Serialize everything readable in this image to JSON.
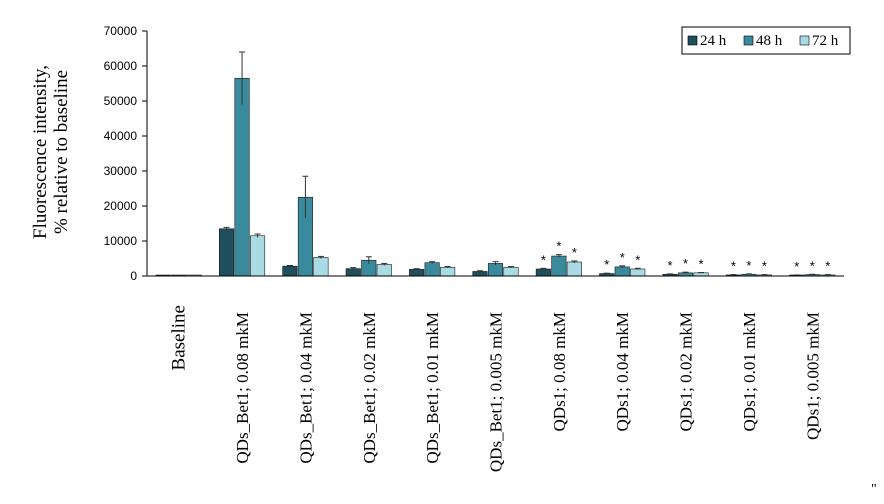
{
  "chart_data": {
    "type": "bar",
    "ylabel_lines": [
      "Fluorescence intensity,",
      "% relative to baseline"
    ],
    "ylim": [
      0,
      70000
    ],
    "yticks": [
      "0",
      "10000",
      "20000",
      "30000",
      "40000",
      "50000",
      "60000",
      "70000"
    ],
    "legend_position": "top-right",
    "categories": [
      "Baseline",
      "QDs_Bet1; 0.08 mkM",
      "QDs_Bet1; 0.04 mkM",
      "QDs_Bet1; 0.02 mkM",
      "QDs_Bet1; 0.01 mkM",
      "QDs_Bet1; 0.005 mkM",
      "QDs1; 0.08 mkM",
      "QDs1; 0.04 mkM",
      "QDs1; 0.02 mkM",
      "QDs1; 0.01 mkM",
      "QDs1; 0.005 mkM"
    ],
    "series": [
      {
        "name": "24 h",
        "color": "#1f4e5c",
        "values": [
          100,
          13500,
          2800,
          2100,
          1900,
          1300,
          2000,
          700,
          500,
          300,
          200
        ],
        "errors": [
          0,
          400,
          200,
          300,
          200,
          200,
          200,
          100,
          100,
          100,
          100
        ],
        "stars": [
          false,
          false,
          false,
          false,
          false,
          false,
          true,
          true,
          true,
          true,
          true
        ]
      },
      {
        "name": "48 h",
        "color": "#3a8a9e",
        "values": [
          100,
          56500,
          22500,
          4500,
          3800,
          3600,
          5700,
          2600,
          900,
          500,
          400
        ],
        "errors": [
          0,
          7500,
          6000,
          1000,
          300,
          500,
          400,
          300,
          200,
          100,
          100
        ],
        "stars": [
          false,
          false,
          false,
          false,
          false,
          false,
          true,
          true,
          true,
          true,
          true
        ]
      },
      {
        "name": "72 h",
        "color": "#a9dbe4",
        "values": [
          100,
          11500,
          5300,
          3300,
          2500,
          2500,
          4000,
          2000,
          900,
          300,
          300
        ],
        "errors": [
          0,
          500,
          300,
          300,
          200,
          200,
          300,
          200,
          100,
          100,
          100
        ],
        "stars": [
          false,
          false,
          false,
          false,
          false,
          false,
          true,
          true,
          true,
          true,
          true
        ]
      }
    ],
    "significance_marker": "*"
  },
  "stray_mark": "\""
}
